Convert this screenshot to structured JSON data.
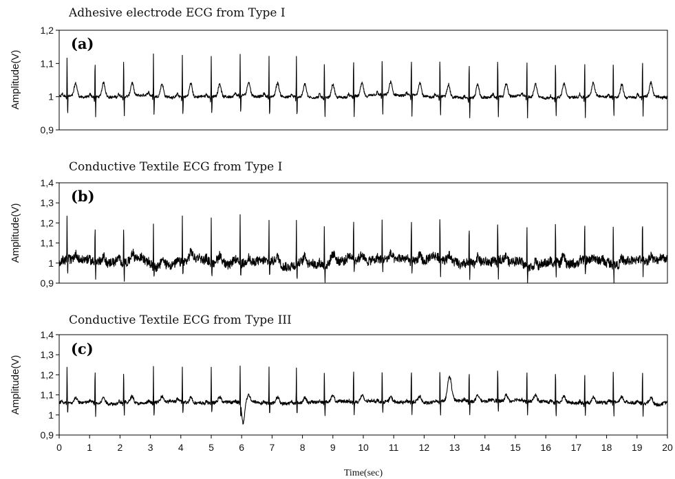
{
  "chart_data": [
    {
      "type": "line",
      "title": "Adhesive electrode ECG from Type I",
      "panel_label": "(a)",
      "ylabel": "Amplitude(V)",
      "ylim": [
        0.9,
        1.2
      ],
      "yticks": [
        0.9,
        1.0,
        1.1,
        1.2
      ],
      "ytick_labels": [
        "0,9",
        "1",
        "1,1",
        "1,2"
      ],
      "xlim": [
        0,
        20
      ],
      "beats": [
        0.26,
        1.18,
        2.12,
        3.1,
        4.05,
        5.0,
        5.95,
        6.9,
        7.8,
        8.72,
        9.68,
        10.62,
        11.58,
        12.52,
        13.48,
        14.42,
        15.38,
        16.32,
        17.28,
        18.22,
        19.18
      ],
      "baseline": 1.0,
      "r_peak": 1.125,
      "s_trough": 0.94,
      "t_wave": 1.04,
      "noise": 0.004
    },
    {
      "type": "line",
      "title": "Conductive Textile ECG from Type I",
      "panel_label": "(b)",
      "ylabel": "Amplitude(V)",
      "ylim": [
        0.9,
        1.4
      ],
      "yticks": [
        0.9,
        1.0,
        1.1,
        1.2,
        1.3,
        1.4
      ],
      "ytick_labels": [
        "0,9",
        "1",
        "1,1",
        "1,2",
        "1,3",
        "1,4"
      ],
      "xlim": [
        0,
        20
      ],
      "beats": [
        0.26,
        1.18,
        2.12,
        3.1,
        4.05,
        5.0,
        5.95,
        6.9,
        7.8,
        8.72,
        9.68,
        10.62,
        11.58,
        12.52,
        13.48,
        14.42,
        15.38,
        16.32,
        17.28,
        18.22,
        19.18
      ],
      "baseline": 1.01,
      "r_peak": 1.23,
      "s_trough": 0.93,
      "t_wave": 1.04,
      "noise": 0.022
    },
    {
      "type": "line",
      "title": "Conductive Textile ECG from Type III",
      "panel_label": "(c)",
      "ylabel": "Amplitude(V)",
      "xlabel": "Time(sec)",
      "ylim": [
        0.9,
        1.4
      ],
      "yticks": [
        0.9,
        1.0,
        1.1,
        1.2,
        1.3,
        1.4
      ],
      "ytick_labels": [
        "0,9",
        "1",
        "1,1",
        "1,2",
        "1,3",
        "1,4"
      ],
      "xlim": [
        0,
        20
      ],
      "xticks": [
        0,
        1,
        2,
        3,
        4,
        5,
        6,
        7,
        8,
        9,
        10,
        11,
        12,
        13,
        14,
        15,
        16,
        17,
        18,
        19,
        20
      ],
      "beats": [
        0.26,
        1.18,
        2.12,
        3.1,
        4.05,
        5.0,
        5.95,
        6.9,
        7.8,
        8.72,
        9.68,
        10.62,
        11.58,
        12.52,
        13.48,
        14.42,
        15.38,
        16.32,
        17.28,
        18.22,
        19.18
      ],
      "baseline": 1.065,
      "r_peak": 1.245,
      "s_trough": 1.0,
      "t_wave": 1.095,
      "noise": 0.008
    }
  ]
}
